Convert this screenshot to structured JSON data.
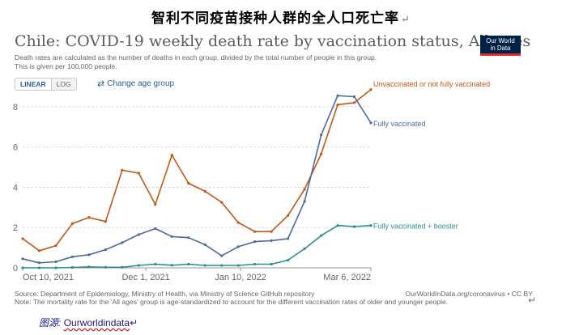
{
  "document": {
    "heading": "智利不同疫苗接种人群的全人口死亡率",
    "paragraph_mark": "↵",
    "caption_label": "图源:",
    "caption_site": "Ourworldindata"
  },
  "chart_header": {
    "title": "Chile: COVID-19 weekly death rate by vaccination status, All ages",
    "subtitle_line1": "Death rates are calculated as the number of deaths in each group, divided by the total number of people in this group.",
    "subtitle_line2": "This is given per 100,000 people.",
    "logo_text": "Our World\nin Data",
    "scale_options": [
      "LINEAR",
      "LOG"
    ],
    "active_scale": "LINEAR",
    "age_group_label": "Change age group"
  },
  "footer": {
    "source": "Source: Department of Epidemiology, Ministry of Health, via Ministry of Science GitHub repository",
    "url": "OurWorldInData.org/coronavirus • CC BY",
    "note": "Note: The mortality rate for the 'All ages' group is age-standardized to account for the different vaccination rates of older and younger people."
  },
  "chart_data": {
    "type": "line",
    "title": "Chile: COVID-19 weekly death rate by vaccination status, All ages",
    "xlabel": "",
    "ylabel": "",
    "x_tick_labels": [
      "Oct 10, 2021",
      "Dec 1, 2021",
      "Jan 10, 2022",
      "Mar 6, 2022"
    ],
    "x_tick_weeks": [
      1,
      8.43,
      14.14,
      22
    ],
    "y_ticks": [
      0,
      2,
      4,
      6,
      8
    ],
    "ylim": [
      0,
      8.8
    ],
    "grid": "horizontal dashed",
    "legend": "inline labels at line ends",
    "series": [
      {
        "name": "Unvaccinated or not fully vaccinated",
        "color": "#c05917",
        "values": [
          1.45,
          0.85,
          1.1,
          2.2,
          2.5,
          2.3,
          4.85,
          4.7,
          3.15,
          5.6,
          4.2,
          3.8,
          3.25,
          2.25,
          1.8,
          1.8,
          2.6,
          3.9,
          5.65,
          8.1,
          8.2,
          8.85
        ]
      },
      {
        "name": "Fully vaccinated",
        "color": "#4c6a9c",
        "values": [
          0.45,
          0.25,
          0.3,
          0.55,
          0.65,
          0.9,
          1.25,
          1.65,
          1.95,
          1.55,
          1.5,
          1.15,
          0.6,
          1.05,
          1.3,
          1.35,
          1.45,
          3.3,
          6.6,
          8.55,
          8.5,
          7.2
        ]
      },
      {
        "name": "Fully vaccinated + booster",
        "color": "#2c8d8b",
        "values": [
          0.0,
          0.0,
          0.0,
          0.02,
          0.05,
          0.03,
          0.03,
          0.12,
          0.18,
          0.13,
          0.18,
          0.12,
          0.12,
          0.12,
          0.18,
          0.18,
          0.38,
          0.95,
          1.6,
          2.1,
          2.05,
          2.1
        ]
      }
    ]
  }
}
